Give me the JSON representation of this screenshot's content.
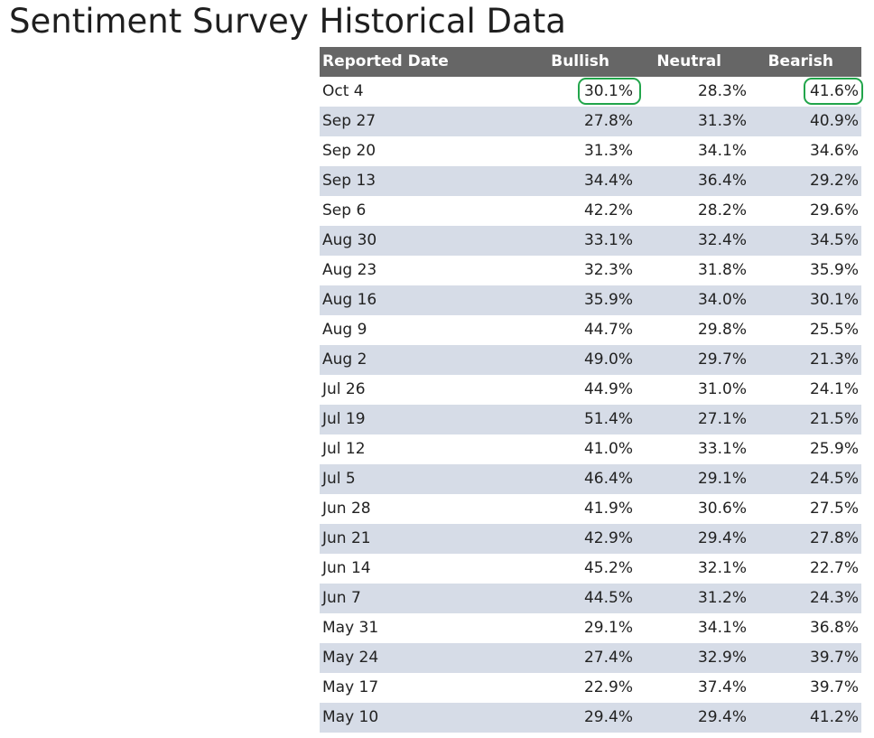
{
  "page": {
    "title": "Sentiment Survey Historical Data"
  },
  "table": {
    "columns": [
      "Reported Date",
      "Bullish",
      "Neutral",
      "Bearish"
    ],
    "rows": [
      [
        "Oct 4",
        "30.1%",
        "28.3%",
        "41.6%"
      ],
      [
        "Sep 27",
        "27.8%",
        "31.3%",
        "40.9%"
      ],
      [
        "Sep 20",
        "31.3%",
        "34.1%",
        "34.6%"
      ],
      [
        "Sep 13",
        "34.4%",
        "36.4%",
        "29.2%"
      ],
      [
        "Sep 6",
        "42.2%",
        "28.2%",
        "29.6%"
      ],
      [
        "Aug 30",
        "33.1%",
        "32.4%",
        "34.5%"
      ],
      [
        "Aug 23",
        "32.3%",
        "31.8%",
        "35.9%"
      ],
      [
        "Aug 16",
        "35.9%",
        "34.0%",
        "30.1%"
      ],
      [
        "Aug 9",
        "44.7%",
        "29.8%",
        "25.5%"
      ],
      [
        "Aug 2",
        "49.0%",
        "29.7%",
        "21.3%"
      ],
      [
        "Jul 26",
        "44.9%",
        "31.0%",
        "24.1%"
      ],
      [
        "Jul 19",
        "51.4%",
        "27.1%",
        "21.5%"
      ],
      [
        "Jul 12",
        "41.0%",
        "33.1%",
        "25.9%"
      ],
      [
        "Jul 5",
        "46.4%",
        "29.1%",
        "24.5%"
      ],
      [
        "Jun 28",
        "41.9%",
        "30.6%",
        "27.5%"
      ],
      [
        "Jun 21",
        "42.9%",
        "29.4%",
        "27.8%"
      ],
      [
        "Jun 14",
        "45.2%",
        "32.1%",
        "22.7%"
      ],
      [
        "Jun 7",
        "44.5%",
        "31.2%",
        "24.3%"
      ],
      [
        "May 31",
        "29.1%",
        "34.1%",
        "36.8%"
      ],
      [
        "May 24",
        "27.4%",
        "32.9%",
        "39.7%"
      ],
      [
        "May 17",
        "22.9%",
        "37.4%",
        "39.7%"
      ],
      [
        "May 10",
        "29.4%",
        "29.4%",
        "41.2%"
      ]
    ],
    "highlighted_cells": [
      {
        "row": 0,
        "column": "Bullish"
      },
      {
        "row": 0,
        "column": "Bearish"
      }
    ]
  },
  "colors": {
    "header_background": "#666666",
    "header_text": "#ffffff",
    "stripe": "#d6dce7",
    "highlight_outline": "#22a54b"
  }
}
